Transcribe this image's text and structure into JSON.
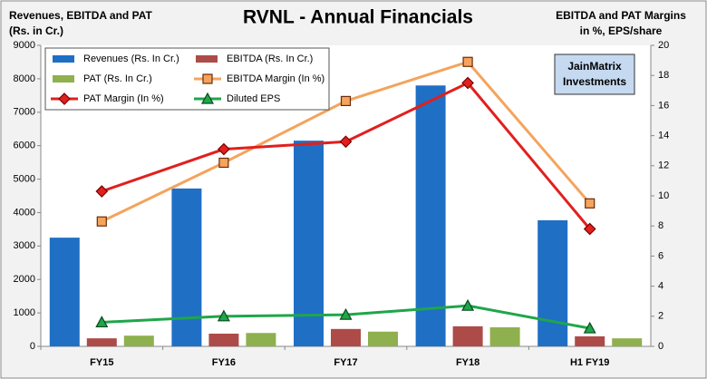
{
  "chart_data": {
    "type": "bar",
    "title": "RVNL - Annual Financials",
    "ylabel": [
      "Revenues, EBITDA and PAT",
      "(Rs. in Cr.)"
    ],
    "y2label": [
      "EBITDA and PAT Margins",
      "in %, EPS/share"
    ],
    "annotation": [
      "JainMatrix",
      "Investments"
    ],
    "categories": [
      "FY15",
      "FY16",
      "FY17",
      "FY18",
      "H1 FY19"
    ],
    "series": [
      {
        "name": "Revenues (Rs. In Cr.)",
        "type": "bar",
        "color": "#1f6fc5",
        "values": [
          3250,
          4720,
          6150,
          7800,
          3770
        ]
      },
      {
        "name": "EBITDA (Rs. In Cr.)",
        "type": "bar",
        "color": "#ad4b49",
        "values": [
          240,
          380,
          520,
          600,
          300
        ]
      },
      {
        "name": "PAT (Rs. In Cr.)",
        "type": "bar",
        "color": "#8fb04e",
        "values": [
          320,
          400,
          440,
          570,
          240
        ]
      },
      {
        "name": "EBITDA Margin (In %)",
        "type": "line",
        "marker": "square",
        "axis": "y2",
        "color": "#f4a45c",
        "values": [
          8.3,
          12.2,
          16.3,
          18.9,
          9.5
        ]
      },
      {
        "name": "PAT Margin (In %)",
        "type": "line",
        "marker": "diamond",
        "axis": "y2",
        "color": "#e0201e",
        "values": [
          10.3,
          13.1,
          13.6,
          17.5,
          7.8
        ]
      },
      {
        "name": "Diluted EPS",
        "type": "line",
        "marker": "triangle",
        "axis": "y2",
        "color": "#1fa64a",
        "values": [
          1.6,
          2.0,
          2.1,
          2.7,
          1.2
        ]
      }
    ],
    "ylim": [
      0,
      9000
    ],
    "yticks": [
      0,
      1000,
      2000,
      3000,
      4000,
      5000,
      6000,
      7000,
      8000,
      9000
    ],
    "y2lim": [
      0,
      20
    ],
    "y2ticks": [
      0,
      2,
      4,
      6,
      8,
      10,
      12,
      14,
      16,
      18,
      20
    ],
    "grid": false,
    "legend": "upper left"
  }
}
